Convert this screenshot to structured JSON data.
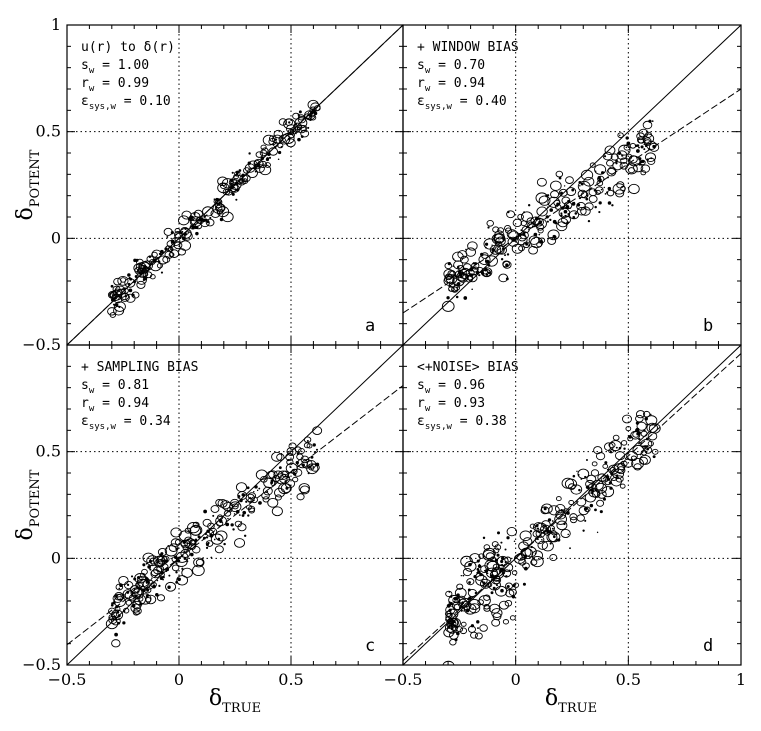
{
  "chart_data": [
    {
      "type": "scatter",
      "panel": "a",
      "label_lines": [
        {
          "main": "u(r) to δ(r)",
          "sub": ""
        },
        {
          "main": "s",
          "sub": "w",
          "rest": " = 1.00"
        },
        {
          "main": "r",
          "sub": "w",
          "rest": " = 0.99"
        },
        {
          "main": "ε",
          "sub": "sys,w",
          "rest": " = 0.10"
        }
      ],
      "xlim": [
        -0.5,
        1
      ],
      "ylim": [
        -0.5,
        1
      ],
      "fit_slope": 1.0,
      "fit_intercept": 0.0,
      "noise": 0.035,
      "x_range": [
        -0.3,
        0.62
      ],
      "n_points": 280
    },
    {
      "type": "scatter",
      "panel": "b",
      "label_lines": [
        {
          "main": "+ WINDOW BIAS",
          "sub": ""
        },
        {
          "main": "s",
          "sub": "w",
          "rest": " = 0.70"
        },
        {
          "main": "r",
          "sub": "w",
          "rest": " = 0.94"
        },
        {
          "main": "ε",
          "sub": "sys,w",
          "rest": " = 0.40"
        }
      ],
      "xlim": [
        -0.5,
        1
      ],
      "ylim": [
        -0.5,
        1
      ],
      "fit_slope": 0.7,
      "fit_intercept": 0.0,
      "noise": 0.065,
      "x_range": [
        -0.3,
        0.62
      ],
      "n_points": 320
    },
    {
      "type": "scatter",
      "panel": "c",
      "label_lines": [
        {
          "main": "+ SAMPLING BIAS",
          "sub": ""
        },
        {
          "main": "s",
          "sub": "w",
          "rest": " = 0.81"
        },
        {
          "main": "r",
          "sub": "w",
          "rest": " = 0.94"
        },
        {
          "main": "ε",
          "sub": "sys,w",
          "rest": " = 0.34"
        }
      ],
      "xlim": [
        -0.5,
        1
      ],
      "ylim": [
        -0.5,
        1
      ],
      "fit_slope": 0.81,
      "fit_intercept": 0.0,
      "noise": 0.06,
      "x_range": [
        -0.3,
        0.62
      ],
      "n_points": 320
    },
    {
      "type": "scatter",
      "panel": "d",
      "label_lines": [
        {
          "main": "<+NOISE> BIAS",
          "sub": ""
        },
        {
          "main": "s",
          "sub": "w",
          "rest": " = 0.96"
        },
        {
          "main": "r",
          "sub": "w",
          "rest": " = 0.93"
        },
        {
          "main": "ε",
          "sub": "sys,w",
          "rest": " = 0.38"
        }
      ],
      "xlim": [
        -0.5,
        1
      ],
      "ylim": [
        -0.5,
        1
      ],
      "fit_slope": 0.96,
      "fit_intercept": 0.0,
      "noise": 0.085,
      "x_range": [
        -0.3,
        0.62
      ],
      "n_points": 380
    }
  ],
  "axes": {
    "xlabel_main": "δ",
    "xlabel_sub": "TRUE",
    "ylabel_main": "δ",
    "ylabel_sub": "POTENT",
    "x_ticks": [
      "−0.5",
      "0",
      "0.5",
      "1"
    ],
    "y_ticks": [
      "−0.5",
      "0",
      "0.5",
      "1"
    ],
    "grid": "dotted lines at 0 and 0.5"
  }
}
